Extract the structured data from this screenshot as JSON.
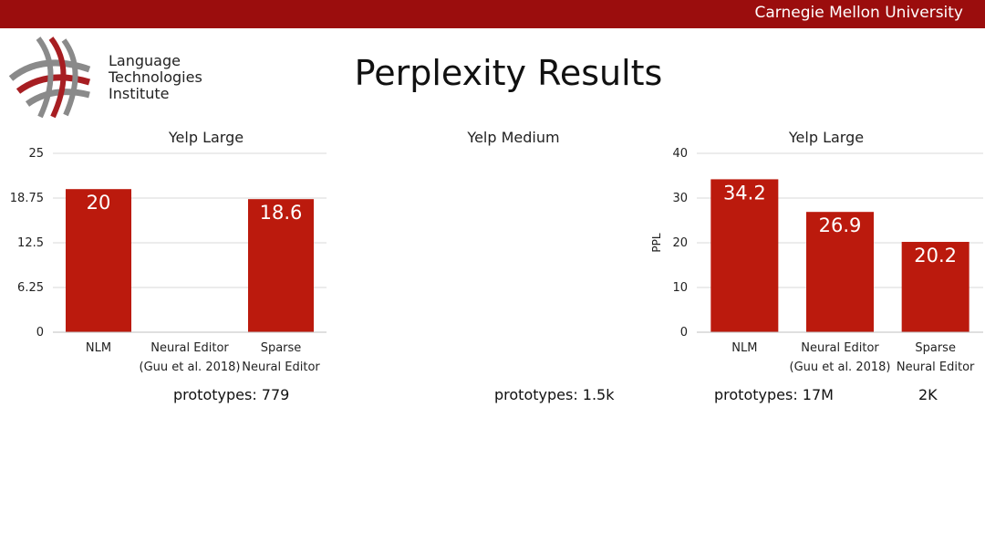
{
  "header": {
    "university": "Carnegie Mellon University"
  },
  "logo": {
    "lines": [
      "Language",
      "Technologies",
      "Institute"
    ]
  },
  "slide": {
    "title": "Perplexity Results"
  },
  "colors": {
    "bar": "#bb1a0d",
    "header": "#9b0d0d",
    "grid": "#d9d9d9"
  },
  "footnotes": {
    "left": "prototypes: 779",
    "middle": "prototypes: 1.5k",
    "right": "prototypes: 17M",
    "right2": "2K"
  },
  "chart_data": [
    {
      "type": "bar",
      "title": "Yelp Large",
      "categories": [
        [
          "NLM"
        ],
        [
          "Neural Editor",
          "(Guu et al. 2018)"
        ],
        [
          "Sparse",
          "Neural Editor"
        ]
      ],
      "values": [
        20,
        null,
        18.6
      ],
      "data_labels": [
        "20",
        "",
        "18.6"
      ],
      "ylim": [
        0,
        25
      ],
      "yticks": [
        "0",
        "6.25",
        "12.5",
        "18.75",
        "25"
      ],
      "ylabel": "",
      "grid": true
    },
    {
      "type": "bar",
      "title": "Yelp Medium",
      "categories": [],
      "values": [],
      "ylabel": ""
    },
    {
      "type": "bar",
      "title": "Yelp Large",
      "categories": [
        [
          "NLM"
        ],
        [
          "Neural Editor",
          "(Guu et al. 2018)"
        ],
        [
          "Sparse",
          "Neural Editor"
        ]
      ],
      "values": [
        34.2,
        26.9,
        20.2
      ],
      "data_labels": [
        "34.2",
        "26.9",
        "20.2"
      ],
      "ylim": [
        0,
        40
      ],
      "yticks": [
        "0",
        "10",
        "20",
        "30",
        "40"
      ],
      "ylabel": "PPL",
      "grid": true
    }
  ]
}
